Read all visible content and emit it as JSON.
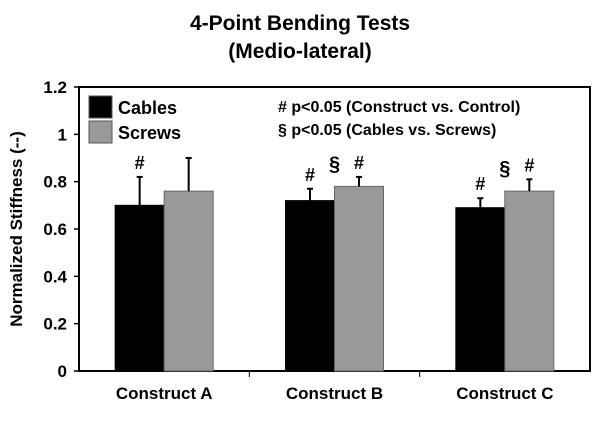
{
  "chart_data": {
    "type": "bar",
    "title": "4-Point Bending Tests",
    "subtitle": "(Medio-lateral)",
    "xlabel": "",
    "ylabel": "Normalized Stiffness (--)",
    "ylim": [
      0,
      1.2
    ],
    "yticks": [
      "0",
      "0.2",
      "0.4",
      "0.6",
      "0.8",
      "1",
      "1.2"
    ],
    "categories": [
      "Construct A",
      "Construct B",
      "Construct C"
    ],
    "series": [
      {
        "name": "Cables",
        "color": "#000000",
        "values": [
          0.7,
          0.72,
          0.69
        ],
        "errors": [
          0.12,
          0.05,
          0.04
        ],
        "markers": [
          "#",
          "#",
          "#"
        ]
      },
      {
        "name": "Screws",
        "color": "#999999",
        "values": [
          0.76,
          0.78,
          0.76
        ],
        "errors": [
          0.14,
          0.04,
          0.05
        ],
        "markers": [
          "",
          "#",
          "#"
        ]
      }
    ],
    "between_markers": [
      "",
      "§",
      "§"
    ],
    "annotations": [
      "# p<0.05 (Construct vs. Control)",
      "§ p<0.05 (Cables vs. Screws)"
    ],
    "legend_position": "upper-left",
    "grid": false
  }
}
